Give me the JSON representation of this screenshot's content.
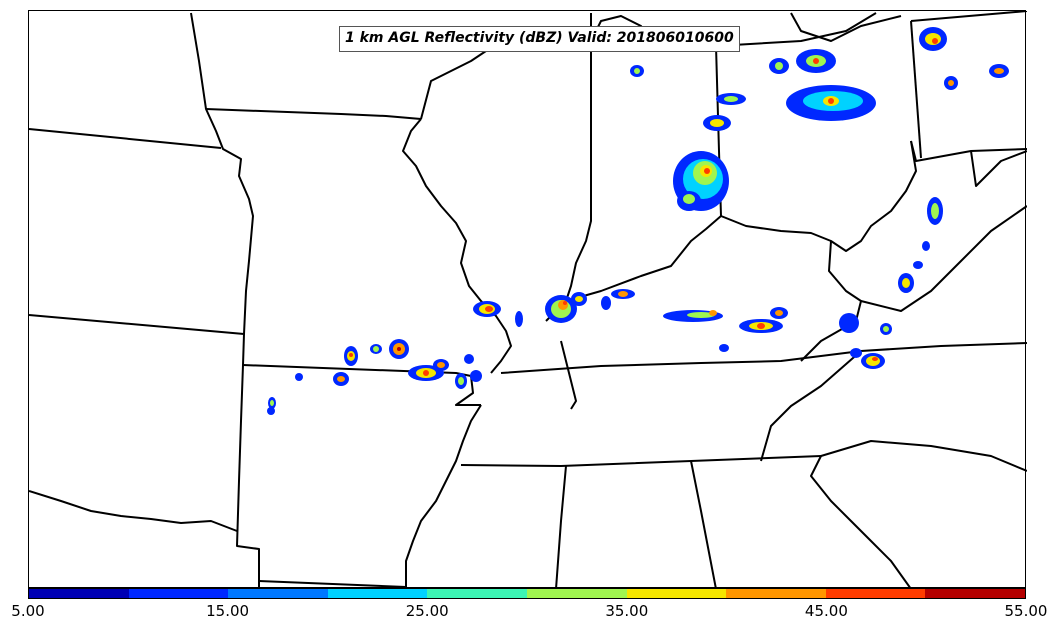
{
  "title": "1 km AGL Reflectivity (dBZ) Valid: 201806010600",
  "colorbar": {
    "colors": [
      "#0000b4",
      "#0028ff",
      "#0078ff",
      "#00d2ff",
      "#3cf5b4",
      "#a0f550",
      "#f5e600",
      "#ff9600",
      "#ff3c00",
      "#b40000"
    ],
    "ticks": [
      "5.00",
      "15.00",
      "25.00",
      "35.00",
      "45.00",
      "55.00"
    ]
  },
  "map": {
    "boundary_color": "#000000",
    "echo_colors": {
      "weak": "#0028ff",
      "light": "#00d2ff",
      "moderate": "#a0f550",
      "strong": "#f5e600",
      "heavy": "#ff3c00",
      "core": "#b40000"
    }
  }
}
